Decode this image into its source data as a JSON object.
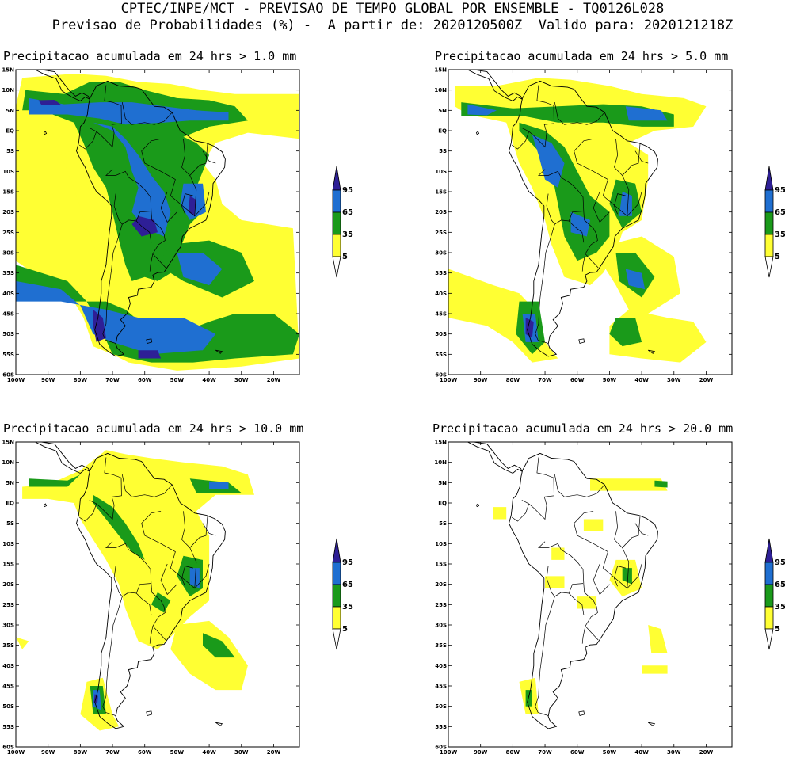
{
  "header": {
    "line1": "CPTEC/INPE/MCT - PREVISAO DE TEMPO GLOBAL POR ENSEMBLE - TQ0126L028",
    "line2": "Previsao de Probabilidades (%) -  A partir de: 2020120500Z  Valido para: 2020121218Z"
  },
  "colors": {
    "c5": "#ffff33",
    "c35": "#1a9a1a",
    "c65": "#1f6fd1",
    "c95": "#2e1f96",
    "border": "#000000"
  },
  "legend": {
    "levels": [
      "5",
      "35",
      "65",
      "95"
    ]
  },
  "axes": {
    "lat_labels": [
      "15N",
      "10N",
      "5N",
      "EQ",
      "5S",
      "10S",
      "15S",
      "20S",
      "25S",
      "30S",
      "35S",
      "40S",
      "45S",
      "50S",
      "55S",
      "60S"
    ],
    "lon_labels": [
      "100W",
      "90W",
      "80W",
      "70W",
      "60W",
      "50W",
      "40W",
      "30W",
      "20W"
    ]
  },
  "panels": [
    {
      "id": "p1",
      "title": "Precipitacao acumulada em 24 hrs > 1.0 mm"
    },
    {
      "id": "p2",
      "title": "Precipitacao acumulada em 24 hrs > 5.0 mm"
    },
    {
      "id": "p3",
      "title": "Precipitacao acumulada em 24 hrs > 10.0 mm"
    },
    {
      "id": "p4",
      "title": "Precipitacao acumulada em 24 hrs > 20.0 mm"
    }
  ]
}
